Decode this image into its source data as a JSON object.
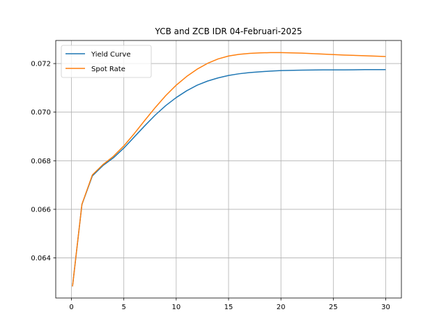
{
  "chart_data": {
    "type": "line",
    "title": "YCB and ZCB IDR 04-Februari-2025",
    "xlabel": "",
    "ylabel": "",
    "xlim": [
      -1.5,
      31.5
    ],
    "ylim": [
      0.06235,
      0.07295
    ],
    "xticks": [
      0,
      5,
      10,
      15,
      20,
      25,
      30
    ],
    "yticks": [
      0.064,
      0.066,
      0.068,
      0.07,
      0.072
    ],
    "xtick_labels": [
      "0",
      "5",
      "10",
      "15",
      "20",
      "25",
      "30"
    ],
    "ytick_labels": [
      "0.064",
      "0.066",
      "0.068",
      "0.070",
      "0.072"
    ],
    "grid": true,
    "legend_position": "top-left",
    "series": [
      {
        "name": "Yield Curve",
        "color": "#1f77b4",
        "x": [
          0.1,
          1,
          2,
          3,
          4,
          5,
          6,
          7,
          8,
          9,
          10,
          11,
          12,
          13,
          14,
          15,
          16,
          17,
          18,
          19,
          20,
          22,
          24,
          26,
          28,
          30
        ],
        "y": [
          0.06283,
          0.0662,
          0.06738,
          0.0678,
          0.06812,
          0.06852,
          0.06898,
          0.06944,
          0.06988,
          0.07027,
          0.0706,
          0.07088,
          0.07111,
          0.07128,
          0.07141,
          0.07151,
          0.07158,
          0.07163,
          0.07166,
          0.07169,
          0.07171,
          0.07173,
          0.07174,
          0.07174,
          0.07175,
          0.07175
        ]
      },
      {
        "name": "Spot Rate",
        "color": "#ff7f0e",
        "x": [
          0.1,
          1,
          2,
          3,
          4,
          5,
          6,
          7,
          8,
          9,
          10,
          11,
          12,
          13,
          14,
          15,
          16,
          17,
          18,
          19,
          20,
          22,
          24,
          26,
          28,
          30
        ],
        "y": [
          0.06283,
          0.06621,
          0.06742,
          0.06784,
          0.06818,
          0.06861,
          0.06912,
          0.06966,
          0.07019,
          0.07068,
          0.07111,
          0.07147,
          0.07177,
          0.07201,
          0.07219,
          0.07231,
          0.07238,
          0.07242,
          0.07244,
          0.07245,
          0.07245,
          0.07243,
          0.07239,
          0.07235,
          0.07232,
          0.07229
        ]
      }
    ]
  }
}
